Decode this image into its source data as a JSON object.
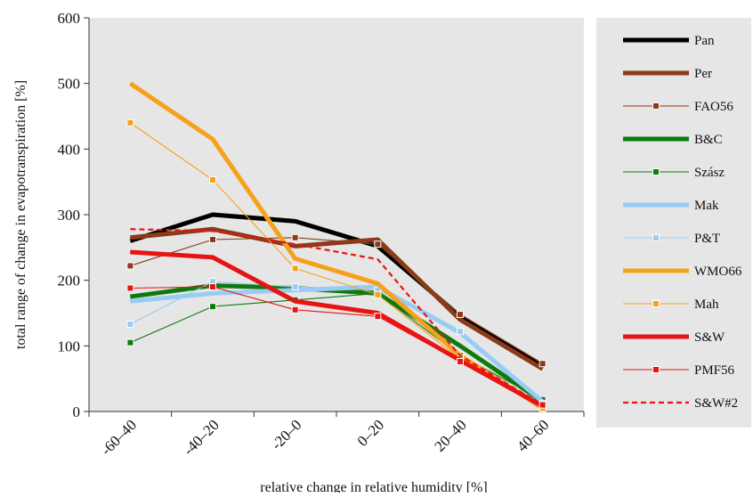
{
  "chart_data": {
    "type": "line",
    "categories": [
      "-60–40",
      "-40–20",
      "-20–0",
      "0–20",
      "20–40",
      "40–60"
    ],
    "xlabel": "relative change in relative humidity [%]",
    "ylabel": "total range of change in evapotranspiration [%]",
    "ylim": [
      0,
      600
    ],
    "yticks": [
      "0",
      "100",
      "200",
      "300",
      "400",
      "500",
      "600"
    ],
    "grid": false,
    "legend_position": "right",
    "series": [
      {
        "name": "Pan",
        "color": "#000000",
        "style": "thick",
        "values": [
          260,
          300,
          290,
          252,
          145,
          70
        ]
      },
      {
        "name": "Per",
        "color": "#8B3A1A",
        "style": "thick",
        "values": [
          265,
          278,
          252,
          262,
          140,
          65
        ]
      },
      {
        "name": "FAO56",
        "color": "#8B3A1A",
        "style": "marker",
        "values": [
          222,
          262,
          265,
          255,
          148,
          73
        ]
      },
      {
        "name": "B&C",
        "color": "#0E7A0E",
        "style": "thick",
        "values": [
          175,
          192,
          188,
          180,
          100,
          15
        ]
      },
      {
        "name": "Szász",
        "color": "#0E7A0E",
        "style": "marker",
        "values": [
          105,
          160,
          170,
          180,
          85,
          18
        ]
      },
      {
        "name": "Mak",
        "color": "#99CCF5",
        "style": "thick",
        "values": [
          168,
          180,
          185,
          190,
          120,
          15
        ]
      },
      {
        "name": "P&T",
        "color": "#99CCF5",
        "style": "marker",
        "values": [
          133,
          198,
          190,
          185,
          122,
          12
        ]
      },
      {
        "name": "WMO66",
        "color": "#F5A21A",
        "style": "thick",
        "values": [
          500,
          415,
          233,
          195,
          85,
          5
        ]
      },
      {
        "name": "Mah",
        "color": "#F5A21A",
        "style": "marker",
        "values": [
          440,
          353,
          218,
          178,
          80,
          5
        ]
      },
      {
        "name": "S&W",
        "color": "#E81414",
        "style": "thick",
        "values": [
          243,
          235,
          168,
          150,
          78,
          8
        ]
      },
      {
        "name": "PMF56",
        "color": "#E81414",
        "style": "marker",
        "values": [
          188,
          190,
          155,
          145,
          76,
          10
        ]
      },
      {
        "name": "S&W#2",
        "color": "#E81414",
        "style": "dashed",
        "values": [
          278,
          275,
          255,
          232,
          85,
          10
        ]
      }
    ]
  }
}
